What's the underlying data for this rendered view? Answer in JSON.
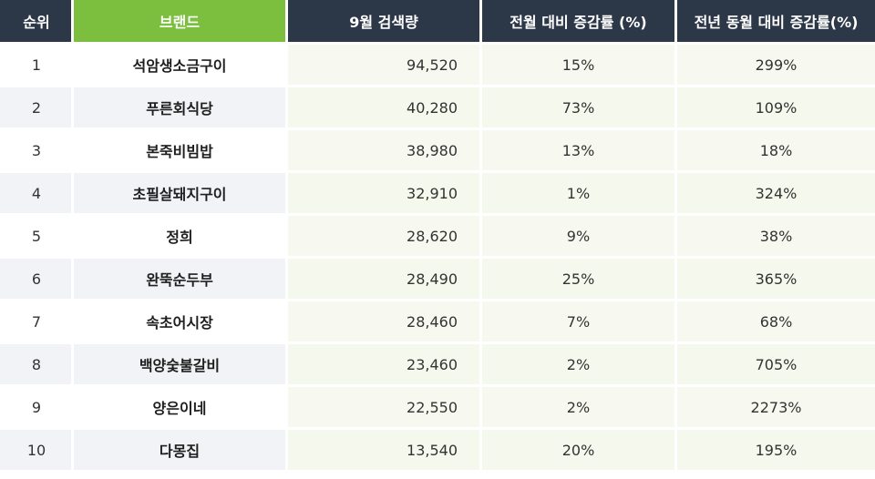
{
  "header": {
    "rank": "순위",
    "brand": "브랜드",
    "search": "9월 검색량",
    "mom": "전월 대비 증감률 (%)",
    "yoy": "전년 동월 대비 증감률(%)"
  },
  "rows": [
    {
      "rank": "1",
      "brand": "석암생소금구이",
      "search": "94,520",
      "mom": "15%",
      "yoy": "299%"
    },
    {
      "rank": "2",
      "brand": "푸른회식당",
      "search": "40,280",
      "mom": "73%",
      "yoy": "109%"
    },
    {
      "rank": "3",
      "brand": "본죽비빔밥",
      "search": "38,980",
      "mom": "13%",
      "yoy": "18%"
    },
    {
      "rank": "4",
      "brand": "초필살돼지구이",
      "search": "32,910",
      "mom": "1%",
      "yoy": "324%"
    },
    {
      "rank": "5",
      "brand": "정희",
      "search": "28,620",
      "mom": "9%",
      "yoy": "38%"
    },
    {
      "rank": "6",
      "brand": "완뚝순두부",
      "search": "28,490",
      "mom": "25%",
      "yoy": "365%"
    },
    {
      "rank": "7",
      "brand": "속초어시장",
      "search": "28,460",
      "mom": "7%",
      "yoy": "68%"
    },
    {
      "rank": "8",
      "brand": "백양숯불갈비",
      "search": "23,460",
      "mom": "2%",
      "yoy": "705%"
    },
    {
      "rank": "9",
      "brand": "양은이네",
      "search": "22,550",
      "mom": "2%",
      "yoy": "2273%"
    },
    {
      "rank": "10",
      "brand": "다몽집",
      "search": "13,540",
      "mom": "20%",
      "yoy": "195%"
    }
  ],
  "colors": {
    "header_dark": "#2c3748",
    "header_accent": "#7cbf3f"
  }
}
